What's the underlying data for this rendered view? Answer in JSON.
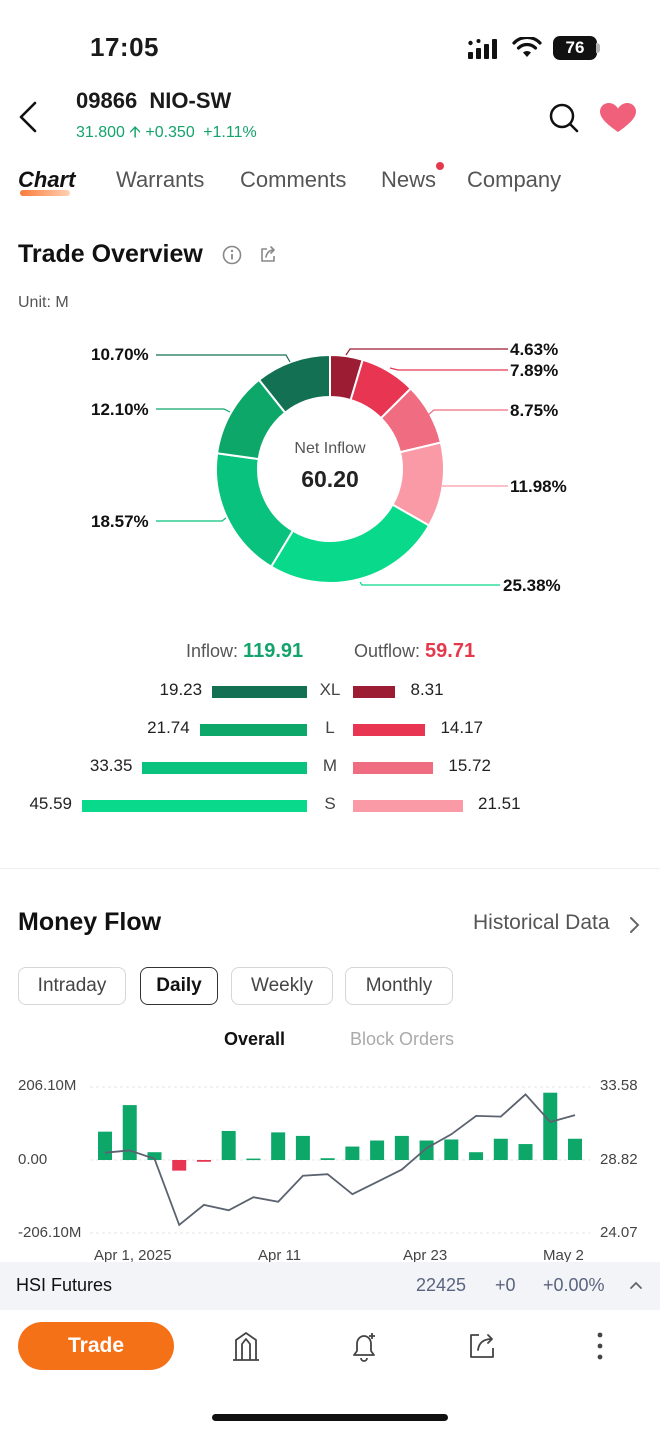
{
  "status_bar": {
    "time": "17:05",
    "battery": "76"
  },
  "header": {
    "code": "09866",
    "name": "NIO-SW",
    "price": "31.800",
    "change": "+0.350",
    "change_pct": "+1.11%",
    "accent": "#13a36b"
  },
  "tabs": [
    "Chart",
    "Warrants",
    "Comments",
    "News",
    "Company"
  ],
  "trade_overview": {
    "title": "Trade Overview",
    "unit": "Unit: M",
    "center_label": "Net Inflow",
    "center_value": "60.20",
    "inflow_label": "Inflow:",
    "inflow_value": "119.91",
    "outflow_label": "Outflow:",
    "outflow_value": "59.71",
    "donut_segments": [
      {
        "label": "4.63%",
        "percent": 4.63,
        "color": "#9b1c33"
      },
      {
        "label": "7.89%",
        "percent": 7.89,
        "color": "#e83552"
      },
      {
        "label": "8.75%",
        "percent": 8.75,
        "color": "#f06c80"
      },
      {
        "label": "11.98%",
        "percent": 11.98,
        "color": "#f99aa6"
      },
      {
        "label": "25.38%",
        "percent": 25.38,
        "color": "#08d98a"
      },
      {
        "label": "18.57%",
        "percent": 18.57,
        "color": "#09c27d"
      },
      {
        "label": "12.10%",
        "percent": 12.1,
        "color": "#0ea76a"
      },
      {
        "label": "10.70%",
        "percent": 10.7,
        "color": "#137052"
      }
    ],
    "rows": [
      {
        "size": "XL",
        "in": "19.23",
        "out": "8.31",
        "in_color": "#137052",
        "out_color": "#9b1c33"
      },
      {
        "size": "L",
        "in": "21.74",
        "out": "14.17",
        "in_color": "#0ea76a",
        "out_color": "#e83552"
      },
      {
        "size": "M",
        "in": "33.35",
        "out": "15.72",
        "in_color": "#09c27d",
        "out_color": "#f06c80"
      },
      {
        "size": "S",
        "in": "45.59",
        "out": "21.51",
        "in_color": "#08d98a",
        "out_color": "#f99aa6"
      }
    ]
  },
  "money_flow": {
    "title": "Money Flow",
    "historical": "Historical Data",
    "periods": [
      "Intraday",
      "Daily",
      "Weekly",
      "Monthly"
    ],
    "active_period": "Daily",
    "sub_tabs": [
      "Overall",
      "Block Orders"
    ],
    "active_sub_tab": "Overall"
  },
  "chart_data": {
    "type": "bar",
    "title": "",
    "left_axis_ticks": [
      "206.10M",
      "0.00",
      "-206.10M"
    ],
    "right_axis_ticks": [
      "33.58",
      "28.82",
      "24.07"
    ],
    "ylim": [
      -206.1,
      206.1
    ],
    "y2lim": [
      24.07,
      33.58
    ],
    "x_tick_labels": [
      "Apr 1, 2025",
      "Apr 11",
      "Apr 23",
      "May 2"
    ],
    "bar_values": [
      80,
      155,
      22,
      -30,
      -5,
      82,
      4,
      78,
      68,
      5,
      38,
      55,
      68,
      55,
      58,
      22,
      60,
      45,
      190,
      60
    ],
    "line_values": [
      29.3,
      29.45,
      28.9,
      24.6,
      25.9,
      25.55,
      26.4,
      26.1,
      27.8,
      27.9,
      26.6,
      27.4,
      28.2,
      29.6,
      30.5,
      31.7,
      31.65,
      33.1,
      31.3,
      31.75
    ],
    "bar_colors": {
      "positive": "#0ea76a",
      "negative": "#e83552"
    },
    "line_color": "#5b6270"
  },
  "bottom_ticker": {
    "name": "HSI Futures",
    "value": "22425",
    "change": "+0",
    "change_pct": "+0.00%"
  },
  "toolbar": {
    "trade_label": "Trade"
  }
}
